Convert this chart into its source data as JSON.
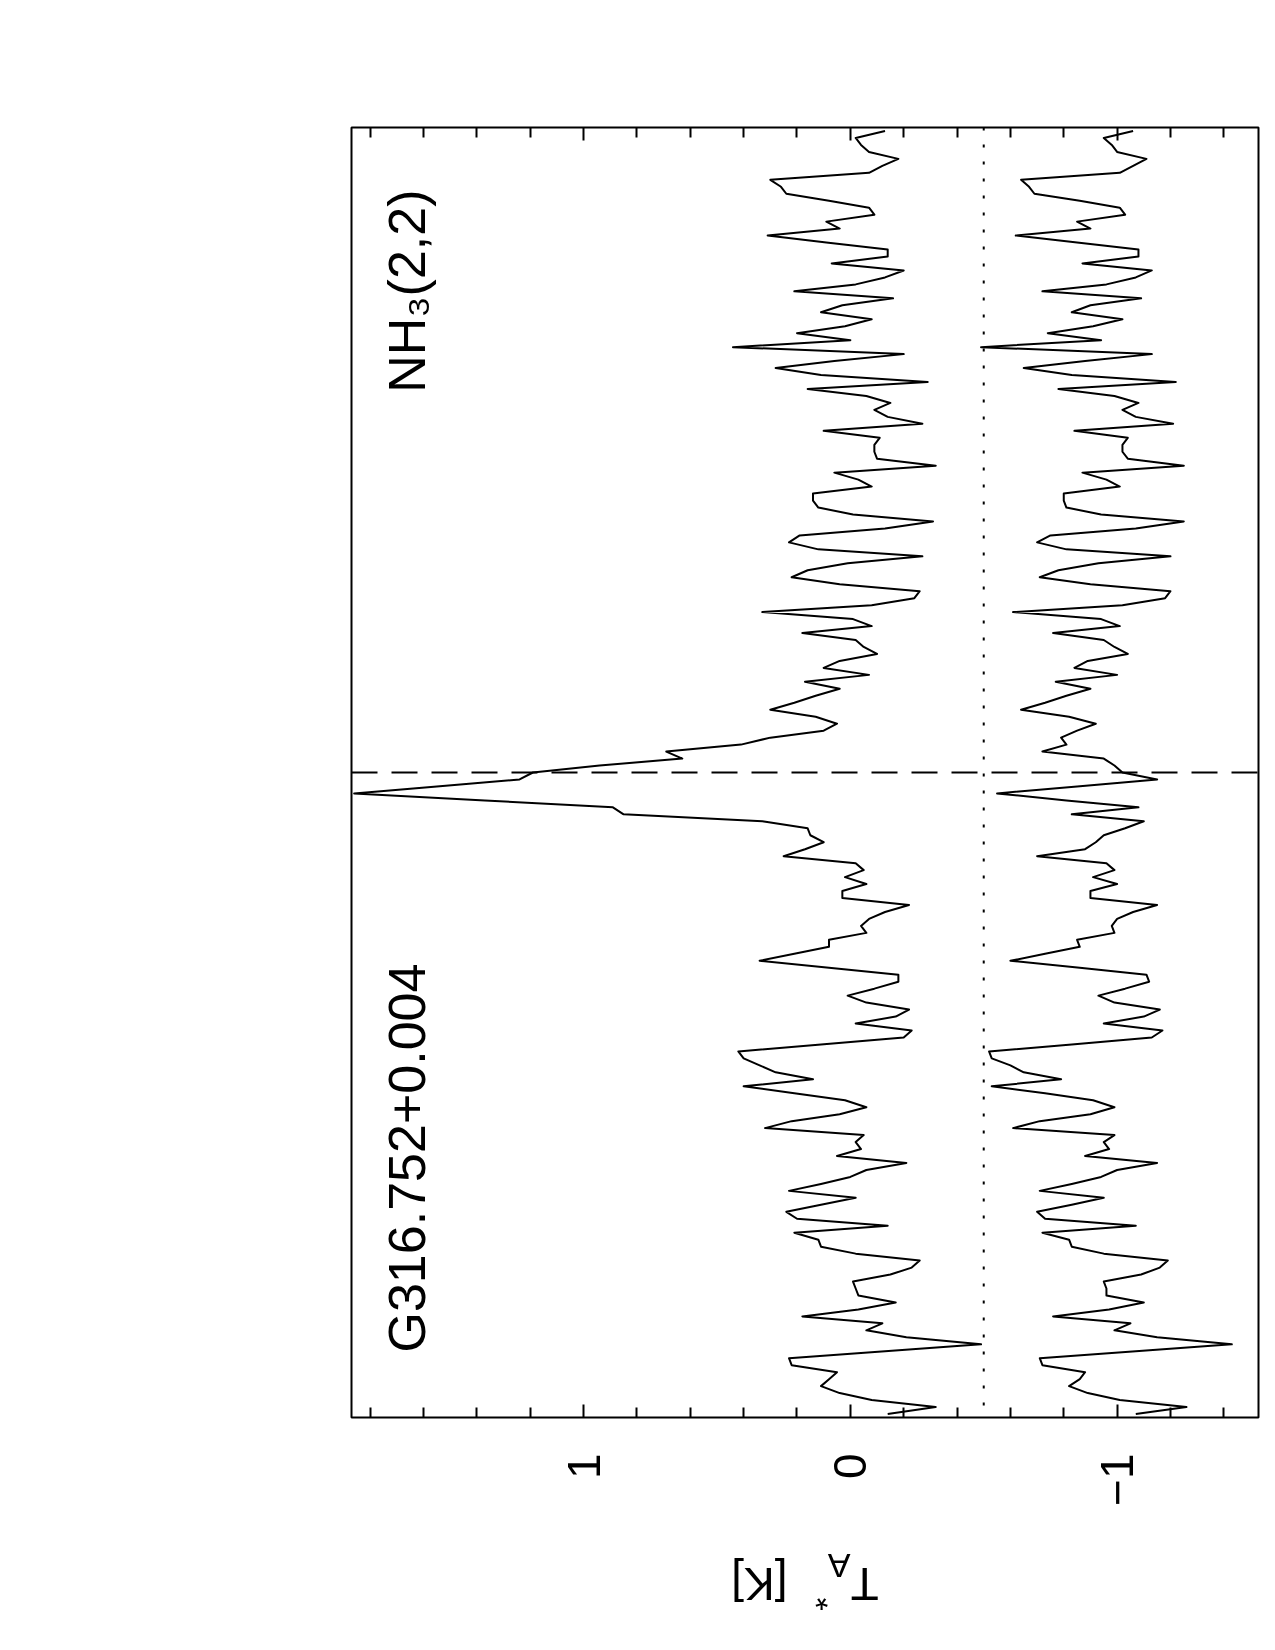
{
  "chart_data": {
    "type": "line",
    "orientation": "horizontal",
    "xlabel": "T$_{A}$$^{*}$ [K]",
    "xlim": [
      1.87,
      -1.53
    ],
    "xticks": [
      {
        "value": 1.8,
        "label": null
      },
      {
        "value": 1.6,
        "label": null
      },
      {
        "value": 1.4,
        "label": null
      },
      {
        "value": 1.2,
        "label": null
      },
      1,
      {
        "value": 0.8,
        "label": null
      },
      {
        "value": 0.6,
        "label": null
      },
      {
        "value": 0.4,
        "label": null
      },
      {
        "value": 0.2,
        "label": null
      },
      0,
      {
        "value": -0.2,
        "label": null
      },
      {
        "value": -0.4,
        "label": null
      },
      {
        "value": -0.6,
        "label": null
      },
      {
        "value": -0.8,
        "label": null
      },
      {
        "value": -1,
        "label": "−1"
      },
      {
        "value": -1.2,
        "label": null
      },
      {
        "value": -1.4,
        "label": null
      }
    ],
    "tick_labels": "x",
    "categories": [
      null,
      null,
      null,
      null,
      null,
      null,
      null,
      null,
      null,
      null,
      null,
      null,
      null,
      null,
      null,
      null,
      null,
      null,
      null,
      null,
      null,
      null,
      null,
      null,
      null,
      null,
      null,
      null,
      null,
      null,
      null,
      null,
      null,
      null,
      null,
      null,
      null,
      null,
      null,
      null,
      null,
      null,
      null,
      null,
      null,
      null,
      null,
      null,
      null,
      null,
      null,
      null,
      null,
      null,
      null,
      null,
      null,
      null,
      null,
      null,
      null,
      null,
      null,
      null,
      null,
      null,
      null,
      null,
      null,
      null,
      null,
      null,
      null,
      null,
      null,
      null,
      null,
      null,
      null,
      null,
      null,
      null,
      null,
      null,
      null,
      null,
      null,
      null,
      null,
      null,
      null,
      null,
      null,
      null,
      null,
      null,
      null,
      null,
      null,
      null,
      null,
      null,
      null,
      null,
      null,
      null,
      null,
      null,
      null,
      null,
      null,
      null,
      null,
      null,
      null,
      null,
      null,
      null,
      null,
      null,
      null,
      null,
      null,
      null,
      null,
      null,
      null,
      null,
      null,
      null,
      null,
      null,
      null,
      null,
      null,
      null,
      null,
      null,
      null,
      null,
      null,
      null,
      null,
      null,
      null,
      null,
      null,
      null,
      null,
      null,
      null,
      null,
      null,
      null,
      null,
      null,
      null,
      null,
      null,
      null,
      null,
      null,
      null,
      null,
      null,
      null,
      null,
      null,
      null,
      null,
      null,
      null,
      null,
      null,
      null,
      null,
      null,
      null,
      null,
      null,
      null,
      null,
      null,
      null,
      null
    ],
    "series": [
      {
        "color": "#000000",
        "values": [
          -0.13,
          -0.02,
          -0.04,
          -0.07,
          -0.18,
          -0.12,
          -0.07,
          0.3,
          0.26,
          0.24,
          0.08,
          -0.07,
          -0.09,
          0.09,
          0.04,
          0.31,
          0.09,
          -0.14,
          -0.14,
          0.07,
          -0.2,
          -0.13,
          -0.02,
          0.21,
          -0.16,
          0.03,
          0.11,
          -0.08,
          0.02,
          0.2,
          0.0,
          0.44,
          -0.2,
          0.06,
          0.28,
          0.11,
          -0.29,
          0.16,
          -0.06,
          -0.15,
          -0.09,
          -0.14,
          -0.27,
          0.1,
          -0.11,
          -0.09,
          -0.09,
          -0.1,
          -0.32,
          0.06,
          -0.03,
          -0.08,
          0.14,
          0.14,
          0.12,
          -0.01,
          -0.31,
          -0.13,
          0.19,
          0.23,
          0.12,
          -0.27,
          0.01,
          0.16,
          0.22,
          0.04,
          -0.26,
          -0.24,
          -0.08,
          0.33,
          -0.01,
          -0.08,
          0.18,
          -0.02,
          -0.05,
          -0.1,
          0.04,
          0.1,
          -0.07,
          0.17,
          0.04,
          0.13,
          0.21,
          0.3,
          0.13,
          0.05,
          0.1,
          0.3,
          0.41,
          0.69,
          0.63,
          0.94,
          1.19,
          1.24,
          1.55,
          1.86,
          1.37,
          0.89,
          0.85,
          0.33,
          0.16,
          0.15,
          0.1,
          0.17,
          0.25,
          -0.02,
          -0.05,
          0.02,
          -0.06,
          0.03,
          0.03,
          -0.22,
          -0.13,
          -0.07,
          -0.04,
          -0.06,
          0.08,
          0.08,
          0.21,
          0.34,
          0.08,
          -0.18,
          -0.18,
          -0.09,
          0.01,
          -0.06,
          -0.22,
          -0.17,
          -0.02,
          -0.23,
          -0.2,
          0.11,
          0.42,
          0.4,
          0.34,
          0.28,
          0.14,
          0.4,
          0.21,
          0.02,
          -0.06,
          0.04,
          0.22,
          0.32,
          -0.05,
          -0.02,
          -0.04,
          0.05,
          -0.21,
          -0.06,
          0.0,
          0.11,
          0.23,
          -0.02,
          0.11,
          0.24,
          0.2,
          -0.14,
          0.21,
          0.12,
          0.11,
          -0.02,
          -0.26,
          -0.23,
          -0.15,
          -0.01,
          -0.02,
          -0.03,
          -0.17,
          -0.03,
          0.18,
          -0.12,
          -0.06,
          -0.21,
          -0.49,
          -0.13,
          0.23,
          0.22,
          0.05,
          0.08,
          0.11,
          0.04,
          -0.08,
          -0.32,
          -0.14
        ]
      },
      {
        "color": "#000000",
        "values": [
          -1.06,
          -0.95,
          -0.98,
          -1.0,
          -1.11,
          -1.06,
          -1.01,
          -0.64,
          -0.67,
          -0.69,
          -0.86,
          -1.01,
          -1.03,
          -0.85,
          -0.9,
          -0.62,
          -0.85,
          -1.08,
          -1.08,
          -0.87,
          -1.13,
          -1.07,
          -0.96,
          -0.72,
          -1.09,
          -0.9,
          -0.83,
          -1.02,
          -0.91,
          -0.74,
          -0.94,
          -0.49,
          -1.13,
          -0.88,
          -0.65,
          -0.83,
          -1.22,
          -0.78,
          -0.99,
          -1.08,
          -1.02,
          -1.07,
          -1.21,
          -0.84,
          -1.04,
          -1.02,
          -1.02,
          -1.04,
          -1.25,
          -0.87,
          -0.96,
          -1.01,
          -0.8,
          -0.8,
          -0.81,
          -0.94,
          -1.25,
          -1.07,
          -0.75,
          -0.7,
          -0.81,
          -1.2,
          -0.93,
          -0.78,
          -0.71,
          -0.9,
          -1.2,
          -1.18,
          -1.02,
          -0.61,
          -0.94,
          -1.01,
          -0.76,
          -0.95,
          -0.99,
          -1.04,
          -0.89,
          -0.84,
          -1.0,
          -0.77,
          -0.9,
          -0.81,
          -0.73,
          -0.64,
          -0.82,
          -0.92,
          -0.85,
          -0.79,
          -0.81,
          -0.72,
          -0.95,
          -0.99,
          -1.02,
          -1.15,
          -0.85,
          -0.55,
          -0.81,
          -1.08,
          -0.83,
          -1.1,
          -1.03,
          -0.95,
          -0.92,
          -0.88,
          -0.7,
          -0.96,
          -0.99,
          -0.91,
          -1.0,
          -0.9,
          -0.9,
          -1.15,
          -1.06,
          -1.0,
          -0.98,
          -0.99,
          -0.85,
          -0.86,
          -0.73,
          -0.6,
          -0.86,
          -1.11,
          -1.12,
          -1.03,
          -0.93,
          -0.99,
          -1.16,
          -1.1,
          -0.95,
          -1.17,
          -1.13,
          -0.83,
          -0.52,
          -0.53,
          -0.6,
          -0.65,
          -0.79,
          -0.53,
          -0.73,
          -0.91,
          -0.99,
          -0.9,
          -0.71,
          -0.61,
          -0.99,
          -0.95,
          -0.97,
          -0.88,
          -1.15,
          -1.0,
          -0.94,
          -0.83,
          -0.71,
          -0.95,
          -0.83,
          -0.7,
          -0.73,
          -1.07,
          -0.72,
          -0.82,
          -0.83,
          -0.95,
          -1.19,
          -1.16,
          -1.09,
          -0.95,
          -0.96,
          -0.96,
          -1.1,
          -0.97,
          -0.76,
          -1.05,
          -0.99,
          -1.15,
          -1.43,
          -1.07,
          -0.71,
          -0.72,
          -0.88,
          -0.86,
          -0.82,
          -0.89,
          -1.01,
          -1.26,
          -1.07
        ]
      }
    ],
    "ref_lines": [
      {
        "axis": "x",
        "value": -0.5,
        "line_style": "dotted",
        "color": "#000000"
      }
    ],
    "annotations": [
      "G316.752+0.004",
      "NH₃(2,2)"
    ]
  }
}
